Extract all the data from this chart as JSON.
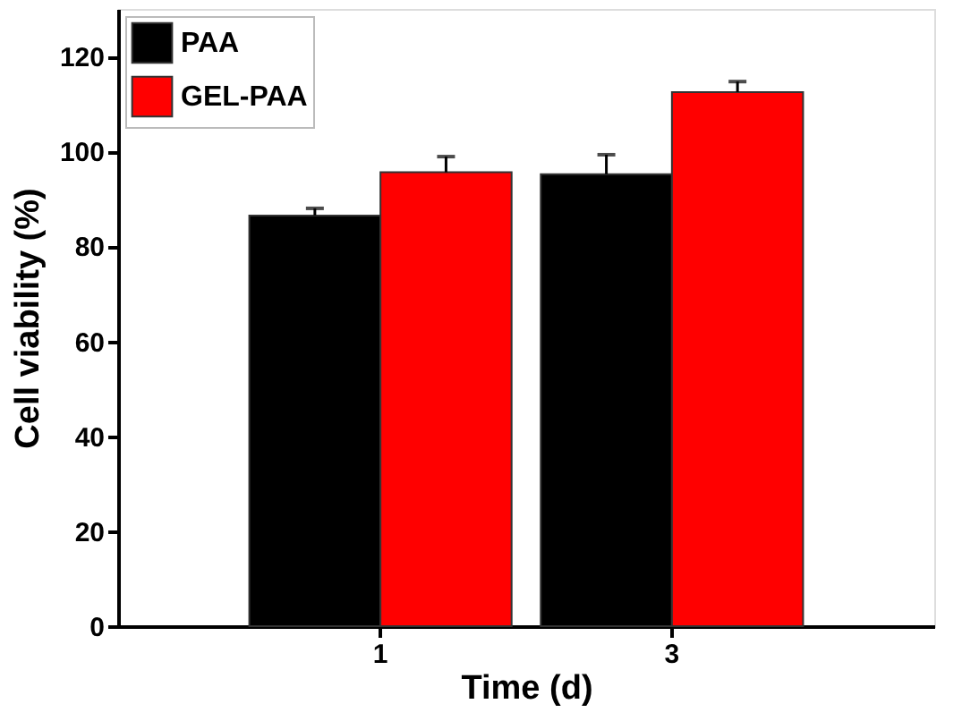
{
  "chart_data": {
    "type": "bar",
    "xlabel": "Time (d)",
    "ylabel": "Cell viability (%)",
    "categories": [
      "1",
      "3"
    ],
    "series": [
      {
        "name": "PAA",
        "color": "#000000",
        "values": [
          86.5,
          95.2
        ],
        "errors": [
          1.5,
          4.1
        ]
      },
      {
        "name": "GEL-PAA",
        "color": "#ff0000",
        "values": [
          95.6,
          112.5
        ],
        "errors": [
          3.3,
          2.2
        ]
      }
    ],
    "ylim": [
      0,
      130
    ],
    "yticks": [
      0,
      20,
      40,
      60,
      80,
      100,
      120
    ],
    "legend": "top left",
    "grid": false
  }
}
